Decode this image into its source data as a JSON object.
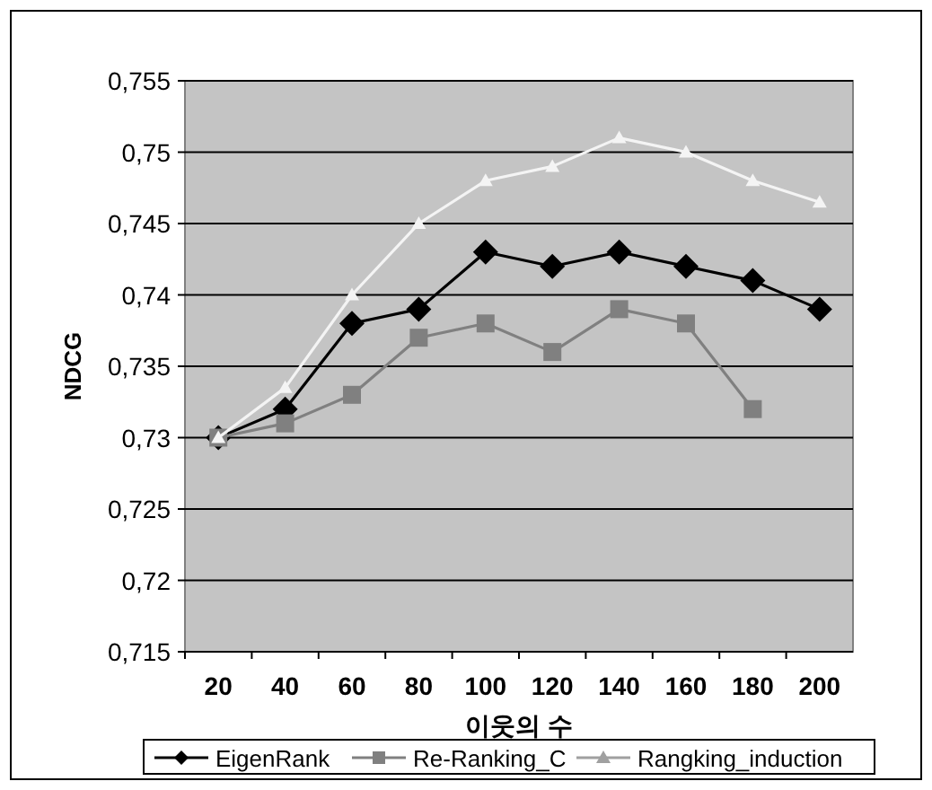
{
  "chart_data": {
    "type": "line",
    "xlabel": "이웃의 수",
    "ylabel": "NDCG",
    "categories": [
      "20",
      "40",
      "60",
      "80",
      "100",
      "120",
      "140",
      "160",
      "180",
      "200"
    ],
    "ylim": [
      0.715,
      0.755
    ],
    "yticks": [
      {
        "value": 0.715,
        "label": "0,715"
      },
      {
        "value": 0.72,
        "label": "0,72"
      },
      {
        "value": 0.725,
        "label": "0,725"
      },
      {
        "value": 0.73,
        "label": "0,73"
      },
      {
        "value": 0.735,
        "label": "0,735"
      },
      {
        "value": 0.74,
        "label": "0,74"
      },
      {
        "value": 0.745,
        "label": "0,745"
      },
      {
        "value": 0.75,
        "label": "0,75"
      },
      {
        "value": 0.755,
        "label": "0,755"
      }
    ],
    "grid": "y",
    "legend": "bottom",
    "series": [
      {
        "name": "EigenRank",
        "color": "#000000",
        "marker": "diamond",
        "values": [
          0.73,
          0.732,
          0.738,
          0.739,
          0.743,
          0.742,
          0.743,
          0.742,
          0.741,
          0.739
        ]
      },
      {
        "name": "Re-Ranking_C",
        "color": "#808080",
        "marker": "square",
        "values": [
          0.73,
          0.731,
          0.733,
          0.737,
          0.738,
          0.736,
          0.739,
          0.738,
          0.732,
          null
        ]
      },
      {
        "name": "Rangking_induction",
        "color": "#f4f4f4",
        "marker": "triangle",
        "values": [
          0.73,
          0.7335,
          0.74,
          0.745,
          0.748,
          0.749,
          0.751,
          0.75,
          0.748,
          0.7465
        ]
      }
    ]
  }
}
